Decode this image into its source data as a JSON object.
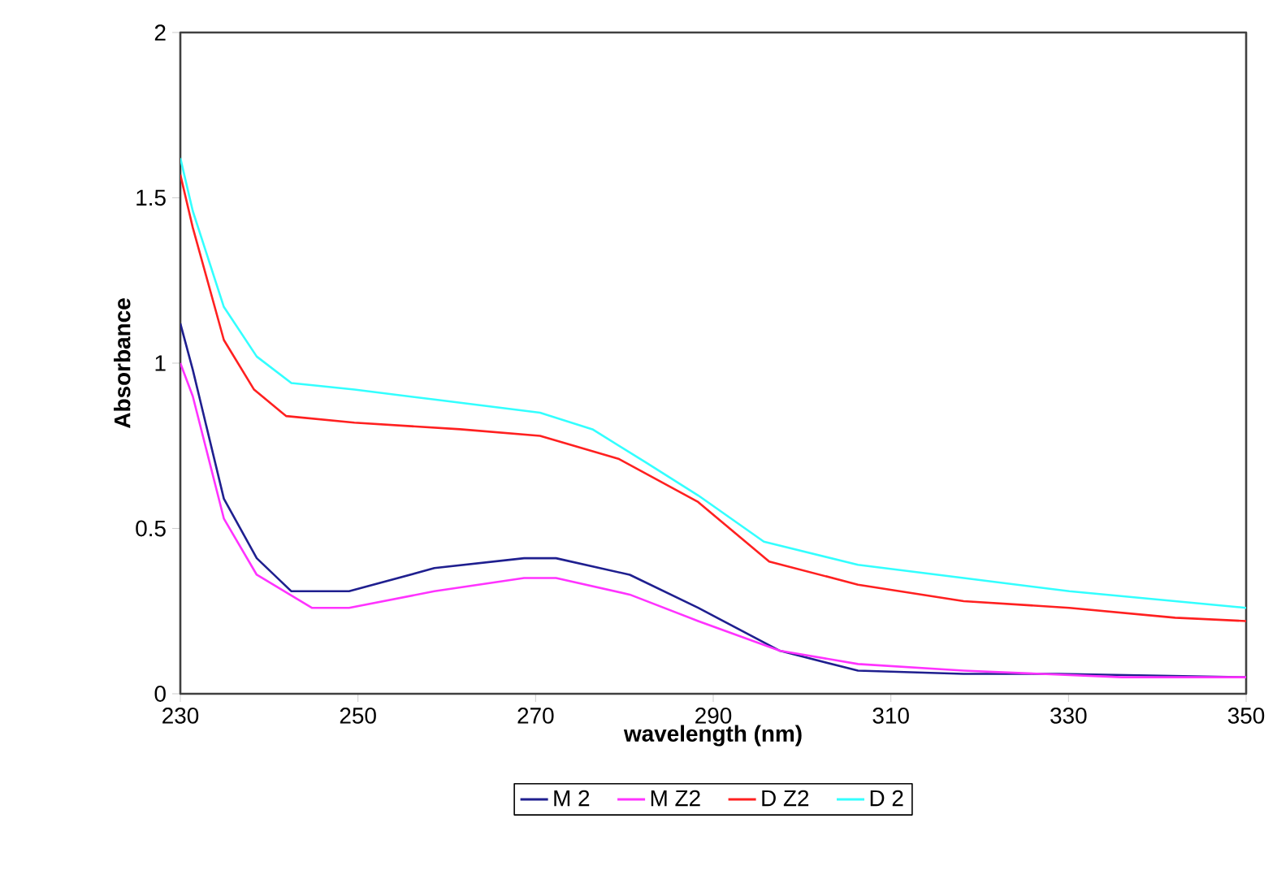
{
  "chart_data": {
    "type": "line",
    "xlabel": "wavelength (nm)",
    "ylabel": "Absorbance",
    "xlim": [
      230,
      350
    ],
    "xticks": [
      230,
      250,
      270,
      290,
      310,
      330,
      350
    ],
    "ylim": [
      0,
      2
    ],
    "yticks": [
      0,
      0.5,
      1,
      1.5,
      2
    ],
    "grid": false,
    "legend": "bottom",
    "marker": "none",
    "line_style": "solid",
    "series": [
      {
        "name": "M 2",
        "color": "#1f1f8f",
        "x": [
          230,
          231.4,
          234.9,
          238.6,
          242.5,
          249,
          258.6,
          268.7,
          272.3,
          280.6,
          288.3,
          297.5,
          306.3,
          318.2,
          328.9,
          350
        ],
        "values": [
          1.12,
          0.98,
          0.59,
          0.41,
          0.31,
          0.31,
          0.38,
          0.41,
          0.41,
          0.36,
          0.26,
          0.13,
          0.07,
          0.06,
          0.06,
          0.05
        ]
      },
      {
        "name": "M Z2",
        "color": "#ff33ff",
        "x": [
          230,
          231.4,
          234.9,
          238.6,
          244.8,
          249,
          258.6,
          268.7,
          272.3,
          280.6,
          288.3,
          297.5,
          306.3,
          318.2,
          336,
          350
        ],
        "values": [
          1.0,
          0.9,
          0.53,
          0.36,
          0.26,
          0.26,
          0.31,
          0.35,
          0.35,
          0.3,
          0.22,
          0.13,
          0.09,
          0.07,
          0.05,
          0.05
        ]
      },
      {
        "name": "D Z2",
        "color": "#ff2020",
        "x": [
          230,
          231.4,
          234.9,
          238.3,
          241.9,
          249.6,
          261.5,
          270.5,
          279.4,
          288.3,
          296.3,
          306.3,
          318.2,
          330.1,
          342,
          350
        ],
        "values": [
          1.57,
          1.41,
          1.07,
          0.92,
          0.84,
          0.82,
          0.8,
          0.78,
          0.71,
          0.58,
          0.4,
          0.33,
          0.28,
          0.26,
          0.23,
          0.22
        ]
      },
      {
        "name": "D 2",
        "color": "#33ffff",
        "x": [
          230,
          231.4,
          234.9,
          238.6,
          242.5,
          249.6,
          258.6,
          270.5,
          276.4,
          282.4,
          288.3,
          295.7,
          306.3,
          318.2,
          330.1,
          342,
          350
        ],
        "values": [
          1.62,
          1.46,
          1.17,
          1.02,
          0.94,
          0.92,
          0.89,
          0.85,
          0.8,
          0.7,
          0.6,
          0.46,
          0.39,
          0.35,
          0.31,
          0.28,
          0.26
        ]
      }
    ]
  }
}
